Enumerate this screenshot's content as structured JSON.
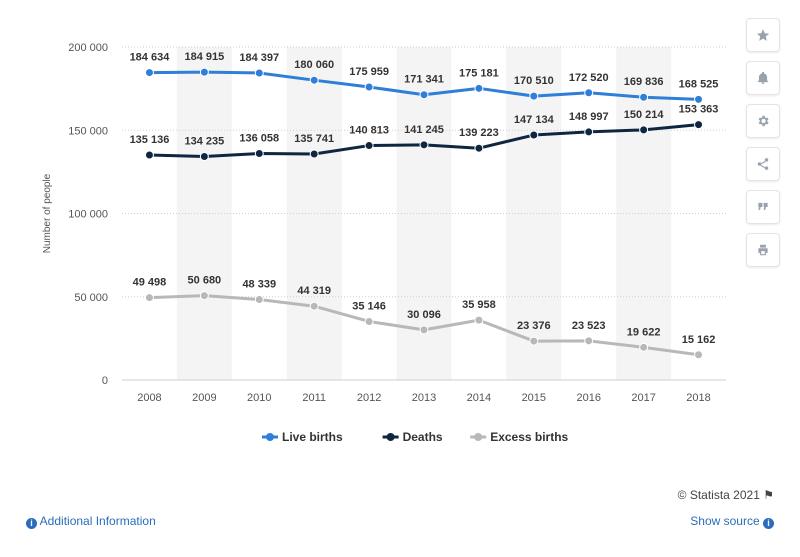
{
  "chart_data": {
    "type": "line",
    "x": [
      "2008",
      "2009",
      "2010",
      "2011",
      "2012",
      "2013",
      "2014",
      "2015",
      "2016",
      "2017",
      "2018"
    ],
    "series": [
      {
        "name": "Live births",
        "color": "#2f7ed8",
        "values": [
          184634,
          184915,
          184397,
          180060,
          175959,
          171341,
          175181,
          170510,
          172520,
          169836,
          168525
        ],
        "labels": [
          "184 634",
          "184 915",
          "184 397",
          "180 060",
          "175 959",
          "171 341",
          "175 181",
          "170 510",
          "172 520",
          "169 836",
          "168 525"
        ]
      },
      {
        "name": "Deaths",
        "color": "#0e2640",
        "values": [
          135136,
          134235,
          136058,
          135741,
          140813,
          141245,
          139223,
          147134,
          148997,
          150214,
          153363
        ],
        "labels": [
          "135 136",
          "134 235",
          "136 058",
          "135 741",
          "140 813",
          "141 245",
          "139 223",
          "147 134",
          "148 997",
          "150 214",
          "153 363"
        ]
      },
      {
        "name": "Excess births",
        "color": "#b8b8b8",
        "values": [
          49498,
          50680,
          48339,
          44319,
          35146,
          30096,
          35958,
          23376,
          23523,
          19622,
          15162
        ],
        "labels": [
          "49 498",
          "50 680",
          "48 339",
          "44 319",
          "35 146",
          "30 096",
          "35 958",
          "23 376",
          "23 523",
          "19 622",
          "15 162"
        ]
      }
    ],
    "ylim": [
      0,
      200000
    ],
    "yticks": [
      {
        "value": 0,
        "label": "0"
      },
      {
        "value": 50000,
        "label": "50 000"
      },
      {
        "value": 100000,
        "label": "100 000"
      },
      {
        "value": 150000,
        "label": "150 000"
      },
      {
        "value": 200000,
        "label": "200 000"
      }
    ],
    "ylabel": "Number of people",
    "xlabel": "",
    "grid": true,
    "legend": "bottom-center"
  },
  "toolbar": {
    "icons": [
      "star-icon",
      "bell-icon",
      "gear-icon",
      "share-icon",
      "quote-icon",
      "print-icon"
    ]
  },
  "footer": {
    "credit": "© Statista 2021",
    "additional_info": "Additional Information",
    "show_source": "Show source"
  }
}
